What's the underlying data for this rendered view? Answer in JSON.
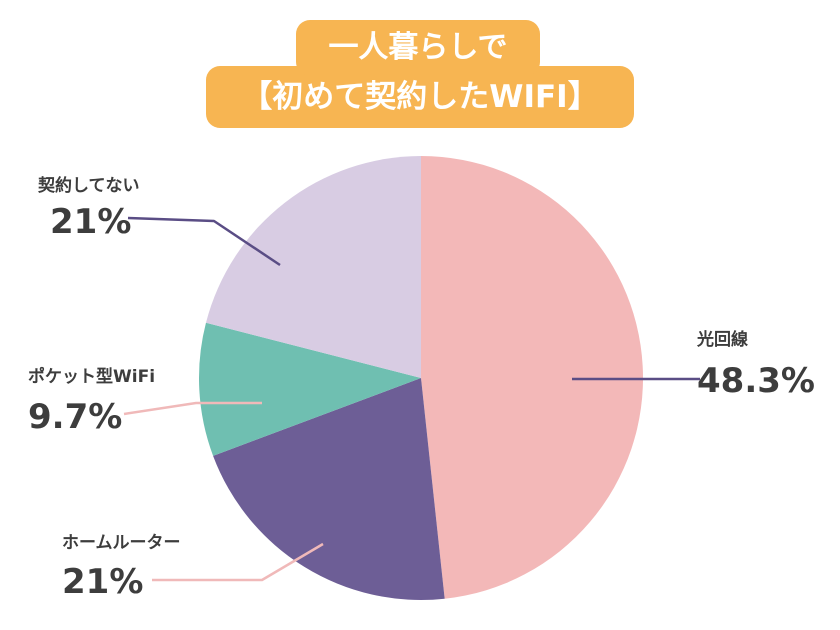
{
  "title": {
    "line1": "一人暮らしで",
    "line2": "【初めて契約したWIFI】"
  },
  "colors": {
    "title_bg": "#f7b552",
    "title_text": "#ffffff"
  },
  "chart_data": {
    "type": "pie",
    "title": "一人暮らしで【初めて契約したWIFI】",
    "slices": [
      {
        "label": "光回線",
        "value": 48.3,
        "value_label": "48.3%",
        "color": "#f3b8b8",
        "leader_color": "#5a4d85"
      },
      {
        "label": "ホームルーター",
        "value": 21,
        "value_label": "21%",
        "color": "#6d5e96",
        "leader_color": "#f0b9b9"
      },
      {
        "label": "ポケット型WiFi",
        "value": 9.7,
        "value_label": "9.7%",
        "color": "#6fbfb1",
        "leader_color": "#f0b9b9"
      },
      {
        "label": "契約してない",
        "value": 21,
        "value_label": "21%",
        "color": "#d8cce3",
        "leader_color": "#5a4d85"
      }
    ],
    "start": "12 o'clock",
    "direction": "clockwise",
    "legend": "none (labels beside slices)"
  }
}
